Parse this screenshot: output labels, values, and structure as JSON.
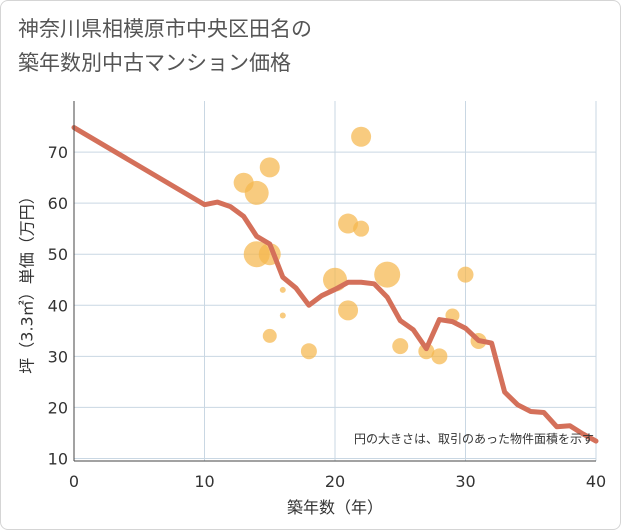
{
  "chart_data": {
    "type": "scatter",
    "title_lines": [
      "神奈川県相模原市中央区田名の",
      "築年数別中古マンション価格"
    ],
    "xlabel": "築年数（年）",
    "ylabel": "坪（3.3㎡）単価（万円）",
    "xlim": [
      0,
      40
    ],
    "ylim": [
      9.5,
      80
    ],
    "xticks": [
      0,
      10,
      20,
      30,
      40
    ],
    "yticks": [
      10,
      20,
      30,
      40,
      50,
      60,
      70
    ],
    "grid": true,
    "note": "円の大きさは、取引のあった物件面積を示す",
    "colors": {
      "bubble": "#f5b74e",
      "line": "#d4705a",
      "grid": "#c9d7e3",
      "axis": "#444444"
    },
    "series": [
      {
        "name": "transactions",
        "kind": "bubble",
        "points": [
          {
            "x": 13,
            "y": 64,
            "size": 10
          },
          {
            "x": 14,
            "y": 62,
            "size": 12
          },
          {
            "x": 14,
            "y": 50,
            "size": 13
          },
          {
            "x": 15,
            "y": 67,
            "size": 10
          },
          {
            "x": 15,
            "y": 50,
            "size": 11
          },
          {
            "x": 15,
            "y": 34,
            "size": 7
          },
          {
            "x": 16,
            "y": 43,
            "size": 3
          },
          {
            "x": 16,
            "y": 38,
            "size": 3
          },
          {
            "x": 18,
            "y": 31,
            "size": 8
          },
          {
            "x": 20,
            "y": 45,
            "size": 12
          },
          {
            "x": 21,
            "y": 56,
            "size": 10
          },
          {
            "x": 21,
            "y": 39,
            "size": 10
          },
          {
            "x": 22,
            "y": 73,
            "size": 10
          },
          {
            "x": 22,
            "y": 55,
            "size": 8
          },
          {
            "x": 24,
            "y": 46,
            "size": 13
          },
          {
            "x": 25,
            "y": 32,
            "size": 8
          },
          {
            "x": 27,
            "y": 31,
            "size": 8
          },
          {
            "x": 28,
            "y": 30,
            "size": 8
          },
          {
            "x": 29,
            "y": 38,
            "size": 7
          },
          {
            "x": 30,
            "y": 46,
            "size": 8
          },
          {
            "x": 31,
            "y": 33,
            "size": 8
          }
        ]
      },
      {
        "name": "trend",
        "kind": "line",
        "points": [
          {
            "x": 0,
            "y": 74.8
          },
          {
            "x": 10,
            "y": 59.7
          },
          {
            "x": 11,
            "y": 60.2
          },
          {
            "x": 12,
            "y": 59.3
          },
          {
            "x": 13,
            "y": 57.4
          },
          {
            "x": 14,
            "y": 53.5
          },
          {
            "x": 15,
            "y": 52.0
          },
          {
            "x": 16,
            "y": 45.5
          },
          {
            "x": 17,
            "y": 43.4
          },
          {
            "x": 18,
            "y": 40.0
          },
          {
            "x": 19,
            "y": 41.9
          },
          {
            "x": 20,
            "y": 43.1
          },
          {
            "x": 21,
            "y": 44.5
          },
          {
            "x": 22,
            "y": 44.5
          },
          {
            "x": 23,
            "y": 44.2
          },
          {
            "x": 24,
            "y": 41.6
          },
          {
            "x": 25,
            "y": 37.0
          },
          {
            "x": 26,
            "y": 35.2
          },
          {
            "x": 27,
            "y": 31.5
          },
          {
            "x": 28,
            "y": 37.2
          },
          {
            "x": 29,
            "y": 36.8
          },
          {
            "x": 30,
            "y": 35.5
          },
          {
            "x": 31,
            "y": 33.1
          },
          {
            "x": 32,
            "y": 32.6
          },
          {
            "x": 33,
            "y": 23.0
          },
          {
            "x": 34,
            "y": 20.5
          },
          {
            "x": 35,
            "y": 19.2
          },
          {
            "x": 36,
            "y": 19.0
          },
          {
            "x": 37,
            "y": 16.2
          },
          {
            "x": 38,
            "y": 16.4
          },
          {
            "x": 39,
            "y": 14.8
          },
          {
            "x": 40,
            "y": 13.4
          }
        ]
      }
    ]
  }
}
